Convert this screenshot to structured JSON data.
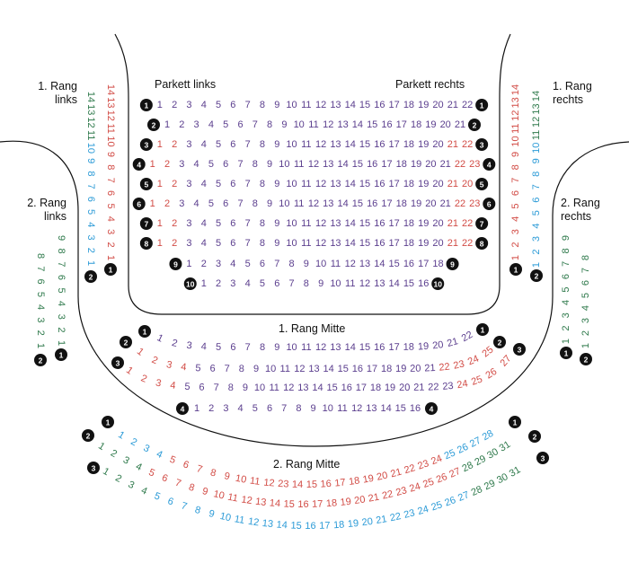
{
  "colors": {
    "purple": "#5b3e8e",
    "red": "#d24c46",
    "blue": "#2c9bd7",
    "green": "#2f7a4c",
    "badge": "#111111",
    "line": "#111111"
  },
  "labels": {
    "parkett_links": "Parkett links",
    "parkett_rechts": "Parkett rechts",
    "rang1_links": [
      "1. Rang",
      "links"
    ],
    "rang1_rechts": [
      "1. Rang",
      "rechts"
    ],
    "rang2_links": [
      "2. Rang",
      "links"
    ],
    "rang2_rechts": [
      "2. Rang",
      "rechts"
    ],
    "rang1_mitte": "1. Rang Mitte",
    "rang2_mitte": "2. Rang Mitte"
  },
  "sections": {
    "parkett": [
      {
        "row": 1,
        "segments": [
          {
            "color": "purple",
            "from": 1,
            "to": 22
          }
        ]
      },
      {
        "row": 2,
        "segments": [
          {
            "color": "purple",
            "from": 1,
            "to": 21
          }
        ]
      },
      {
        "row": 3,
        "segments": [
          {
            "color": "red",
            "from": 1,
            "to": 2
          },
          {
            "color": "purple",
            "from": 3,
            "to": 20
          },
          {
            "color": "red",
            "from": 21,
            "to": 22
          }
        ]
      },
      {
        "row": 4,
        "segments": [
          {
            "color": "red",
            "from": 1,
            "to": 2
          },
          {
            "color": "purple",
            "from": 3,
            "to": 21
          },
          {
            "color": "red",
            "from": 22,
            "to": 23
          }
        ]
      },
      {
        "row": 5,
        "segments": [
          {
            "color": "red",
            "from": 1,
            "to": 2
          },
          {
            "color": "purple",
            "from": 3,
            "to": 20
          },
          {
            "color": "red",
            "list": [
              21,
              20
            ]
          }
        ]
      },
      {
        "row": 6,
        "segments": [
          {
            "color": "red",
            "from": 1,
            "to": 2
          },
          {
            "color": "purple",
            "from": 3,
            "to": 21
          },
          {
            "color": "red",
            "from": 22,
            "to": 23
          }
        ]
      },
      {
        "row": 7,
        "segments": [
          {
            "color": "red",
            "from": 1,
            "to": 2
          },
          {
            "color": "purple",
            "from": 3,
            "to": 20
          },
          {
            "color": "red",
            "from": 21,
            "to": 22
          }
        ]
      },
      {
        "row": 8,
        "segments": [
          {
            "color": "red",
            "from": 1,
            "to": 2
          },
          {
            "color": "purple",
            "from": 3,
            "to": 20
          },
          {
            "color": "red",
            "from": 21,
            "to": 22
          }
        ]
      },
      {
        "row": 9,
        "segments": [
          {
            "color": "purple",
            "from": 1,
            "to": 18
          }
        ]
      },
      {
        "row": 10,
        "segments": [
          {
            "color": "purple",
            "from": 1,
            "to": 16
          }
        ]
      }
    ],
    "rang1_mitte": [
      {
        "row": 1,
        "segments": [
          {
            "color": "purple",
            "from": 1,
            "to": 22
          }
        ]
      },
      {
        "row": 2,
        "segments": [
          {
            "color": "red",
            "from": 1,
            "to": 4
          },
          {
            "color": "purple",
            "from": 5,
            "to": 21
          },
          {
            "color": "red",
            "from": 22,
            "to": 25
          }
        ]
      },
      {
        "row": 3,
        "segments": [
          {
            "color": "red",
            "from": 1,
            "to": 4
          },
          {
            "color": "purple",
            "from": 5,
            "to": 23
          },
          {
            "color": "red",
            "from": 24,
            "to": 27
          }
        ]
      },
      {
        "row": 4,
        "segments": [
          {
            "color": "purple",
            "from": 1,
            "to": 16
          }
        ]
      }
    ],
    "rang2_mitte": [
      {
        "row": 1,
        "segments": [
          {
            "color": "blue",
            "from": 1,
            "to": 4
          },
          {
            "color": "red",
            "from": 5,
            "to": 12
          },
          {
            "color": "red",
            "list": [
              23
            ]
          },
          {
            "color": "red",
            "from": 14,
            "to": 24
          },
          {
            "color": "blue",
            "from": 25,
            "to": 28
          }
        ]
      },
      {
        "row": 2,
        "segments": [
          {
            "color": "green",
            "from": 1,
            "to": 4
          },
          {
            "color": "red",
            "from": 5,
            "to": 27
          },
          {
            "color": "green",
            "from": 28,
            "to": 31
          }
        ]
      },
      {
        "row": 3,
        "segments": [
          {
            "color": "green",
            "from": 1,
            "to": 4
          },
          {
            "color": "blue",
            "from": 5,
            "to": 27
          },
          {
            "color": "green",
            "from": 28,
            "to": 31
          }
        ]
      }
    ],
    "rang1_links": [
      {
        "row": 1,
        "segments": [
          {
            "color": "red",
            "from": 1,
            "to": 14
          }
        ]
      },
      {
        "row": 2,
        "segments": [
          {
            "color": "blue",
            "from": 1,
            "to": 10
          },
          {
            "color": "green",
            "from": 11,
            "to": 14
          }
        ]
      }
    ],
    "rang1_rechts": [
      {
        "row": 1,
        "segments": [
          {
            "color": "red",
            "from": 1,
            "to": 14
          }
        ]
      },
      {
        "row": 2,
        "segments": [
          {
            "color": "blue",
            "from": 1,
            "to": 10
          },
          {
            "color": "green",
            "from": 11,
            "to": 14
          }
        ]
      }
    ],
    "rang2_links": [
      {
        "row": 1,
        "segments": [
          {
            "color": "green",
            "from": 1,
            "to": 9
          }
        ]
      },
      {
        "row": 2,
        "segments": [
          {
            "color": "green",
            "from": 1,
            "to": 8
          }
        ]
      }
    ],
    "rang2_rechts": [
      {
        "row": 1,
        "segments": [
          {
            "color": "green",
            "from": 1,
            "to": 9
          }
        ]
      },
      {
        "row": 2,
        "segments": [
          {
            "color": "green",
            "from": 1,
            "to": 8
          }
        ]
      }
    ]
  }
}
